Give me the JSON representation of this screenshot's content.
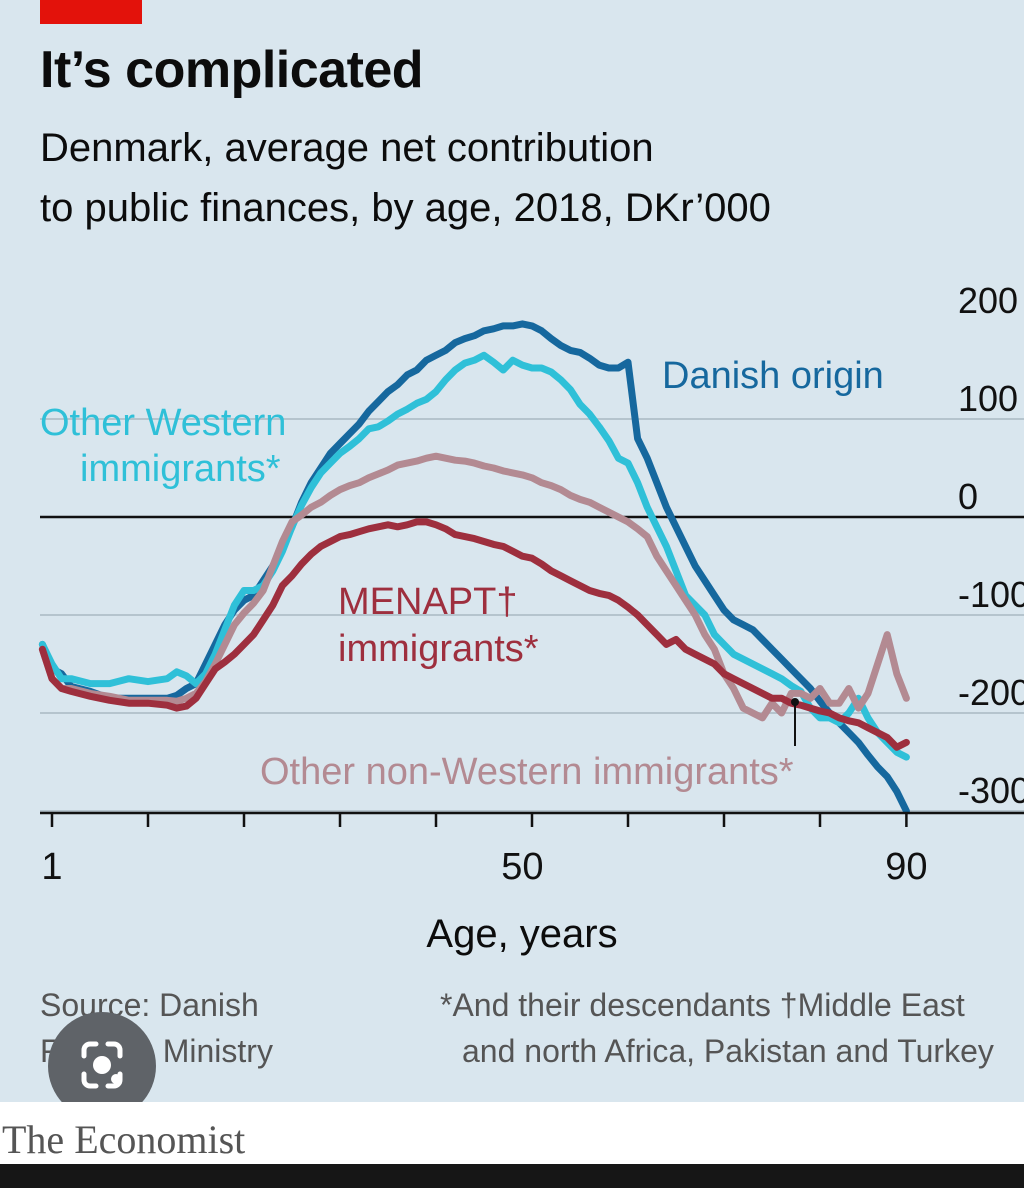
{
  "header": {
    "title": "It’s complicated",
    "subtitle_line1": "Denmark, average net contribution",
    "subtitle_line2_bold": "to public finances,",
    "subtitle_line2_light": " by age, 2018, DKr’000"
  },
  "footer": {
    "source_line1": "Source: Danish",
    "source_line2": "Finance Ministry",
    "footnote_line1": "*And their descendants   †Middle East",
    "footnote_line2": "and north Africa, Pakistan and Turkey",
    "brand": "The Economist"
  },
  "colors": {
    "background": "#d9e6ee",
    "danish": "#16689e",
    "other_western": "#2fc0d8",
    "menapt": "#9e2f3e",
    "other_non_western": "#b38a92",
    "accent_red": "#e3120b"
  },
  "chart_data": {
    "type": "line",
    "title": "It’s complicated",
    "subtitle": "Denmark, average net contribution to public finances, by age, 2018, DKr’000",
    "xlabel": "Age, years",
    "ylabel": "",
    "xlim": [
      0,
      91
    ],
    "ylim": [
      -300,
      200
    ],
    "x_ticks": [
      1,
      50,
      90
    ],
    "y_ticks": [
      200,
      100,
      0,
      -100,
      -200,
      -300
    ],
    "y_tick_labels": [
      "200",
      "100",
      "0",
      "-100",
      "-200",
      "-300"
    ],
    "grid": "horizontal",
    "series": [
      {
        "name": "Danish origin",
        "color": "#16689e",
        "x": [
          0,
          1,
          2,
          3,
          5,
          7,
          9,
          11,
          13,
          14,
          15,
          16,
          17,
          18,
          19,
          20,
          21,
          22,
          23,
          24,
          25,
          26,
          27,
          28,
          29,
          30,
          31,
          32,
          33,
          34,
          35,
          36,
          37,
          38,
          39,
          40,
          41,
          42,
          43,
          44,
          45,
          46,
          47,
          48,
          49,
          50,
          51,
          52,
          53,
          54,
          55,
          56,
          57,
          58,
          59,
          60,
          61,
          62,
          63,
          64,
          65,
          66,
          67,
          68,
          69,
          70,
          71,
          72,
          73,
          74,
          75,
          76,
          77,
          78,
          79,
          80,
          81,
          82,
          83,
          84,
          85,
          86,
          87,
          88,
          89,
          90
        ],
        "values": [
          -130,
          -155,
          -160,
          -173,
          -178,
          -185,
          -185,
          -185,
          -185,
          -182,
          -175,
          -170,
          -150,
          -130,
          -110,
          -95,
          -85,
          -80,
          -65,
          -50,
          -30,
          -10,
          15,
          35,
          50,
          65,
          75,
          85,
          95,
          108,
          118,
          128,
          135,
          145,
          150,
          160,
          165,
          170,
          178,
          182,
          185,
          190,
          192,
          195,
          195,
          197,
          195,
          190,
          182,
          175,
          170,
          168,
          162,
          155,
          152,
          152,
          158,
          80,
          60,
          35,
          10,
          -10,
          -30,
          -50,
          -65,
          -80,
          -95,
          -105,
          -110,
          -115,
          -125,
          -135,
          -145,
          -155,
          -165,
          -175,
          -188,
          -200,
          -210,
          -220,
          -230,
          -243,
          -255,
          -265,
          -280,
          -300
        ]
      },
      {
        "name": "Other Western immigrants*",
        "color": "#2fc0d8",
        "x": [
          0,
          1,
          2,
          3,
          5,
          7,
          9,
          11,
          13,
          14,
          15,
          16,
          17,
          18,
          19,
          20,
          21,
          22,
          23,
          24,
          25,
          26,
          27,
          28,
          29,
          30,
          31,
          32,
          33,
          34,
          35,
          36,
          37,
          38,
          39,
          40,
          41,
          42,
          43,
          44,
          45,
          46,
          47,
          48,
          49,
          50,
          51,
          52,
          53,
          54,
          55,
          56,
          57,
          58,
          59,
          60,
          61,
          62,
          63,
          64,
          65,
          66,
          67,
          68,
          69,
          70,
          71,
          72,
          73,
          74,
          75,
          76,
          77,
          78,
          79,
          80,
          81,
          82,
          83,
          84,
          85,
          86,
          87,
          88,
          89,
          90
        ],
        "values": [
          -130,
          -150,
          -165,
          -165,
          -170,
          -170,
          -165,
          -168,
          -165,
          -158,
          -162,
          -170,
          -160,
          -140,
          -115,
          -90,
          -75,
          -75,
          -70,
          -55,
          -35,
          -10,
          12,
          30,
          45,
          55,
          65,
          72,
          80,
          90,
          92,
          98,
          105,
          110,
          116,
          120,
          128,
          140,
          150,
          157,
          160,
          165,
          158,
          150,
          160,
          155,
          152,
          152,
          148,
          140,
          130,
          115,
          105,
          92,
          78,
          60,
          55,
          35,
          10,
          -10,
          -30,
          -55,
          -80,
          -90,
          -100,
          -120,
          -130,
          -140,
          -145,
          -150,
          -155,
          -160,
          -165,
          -172,
          -178,
          -195,
          -205,
          -205,
          -210,
          -200,
          -185,
          -205,
          -220,
          -230,
          -240,
          -245
        ]
      },
      {
        "name": "Other non-Western immigrants*",
        "color": "#b38a92",
        "x": [
          0,
          1,
          2,
          3,
          5,
          7,
          9,
          11,
          13,
          14,
          15,
          16,
          17,
          18,
          19,
          20,
          21,
          22,
          23,
          24,
          25,
          26,
          27,
          28,
          29,
          30,
          31,
          32,
          33,
          34,
          35,
          36,
          37,
          38,
          39,
          40,
          41,
          42,
          43,
          44,
          45,
          46,
          47,
          48,
          49,
          50,
          51,
          52,
          53,
          54,
          55,
          56,
          57,
          58,
          59,
          60,
          61,
          62,
          63,
          64,
          65,
          66,
          67,
          68,
          69,
          70,
          71,
          72,
          73,
          74,
          75,
          76,
          77,
          78,
          79,
          80,
          81,
          82,
          83,
          84,
          85,
          86,
          87,
          88,
          89,
          90
        ],
        "values": [
          -135,
          -165,
          -175,
          -175,
          -180,
          -183,
          -187,
          -187,
          -187,
          -188,
          -185,
          -180,
          -168,
          -150,
          -130,
          -110,
          -98,
          -88,
          -75,
          -50,
          -25,
          -5,
          2,
          10,
          15,
          22,
          28,
          32,
          35,
          40,
          44,
          48,
          53,
          55,
          57,
          60,
          62,
          60,
          58,
          57,
          55,
          52,
          50,
          47,
          45,
          43,
          40,
          35,
          32,
          28,
          22,
          18,
          15,
          10,
          5,
          0,
          -5,
          -12,
          -20,
          -40,
          -55,
          -70,
          -85,
          -100,
          -120,
          -135,
          -160,
          -175,
          -195,
          -200,
          -205,
          -190,
          -200,
          -180,
          -180,
          -185,
          -175,
          -190,
          -190,
          -175,
          -195,
          -180,
          -150,
          -120,
          -160,
          -185
        ]
      },
      {
        "name": "MENAPT† immigrants*",
        "color": "#9e2f3e",
        "x": [
          0,
          1,
          2,
          3,
          5,
          7,
          9,
          11,
          13,
          14,
          15,
          16,
          17,
          18,
          19,
          20,
          21,
          22,
          23,
          24,
          25,
          26,
          27,
          28,
          29,
          30,
          31,
          32,
          33,
          34,
          35,
          36,
          37,
          38,
          39,
          40,
          41,
          42,
          43,
          44,
          45,
          46,
          47,
          48,
          49,
          50,
          51,
          52,
          53,
          54,
          55,
          56,
          57,
          58,
          59,
          60,
          61,
          62,
          63,
          64,
          65,
          66,
          67,
          68,
          69,
          70,
          71,
          72,
          73,
          74,
          75,
          76,
          77,
          78,
          79,
          80,
          81,
          82,
          83,
          84,
          85,
          86,
          87,
          88,
          89,
          90
        ],
        "values": [
          -135,
          -165,
          -175,
          -178,
          -183,
          -187,
          -190,
          -190,
          -192,
          -195,
          -193,
          -185,
          -170,
          -155,
          -148,
          -140,
          -130,
          -120,
          -105,
          -90,
          -70,
          -60,
          -48,
          -38,
          -30,
          -25,
          -20,
          -18,
          -15,
          -12,
          -10,
          -8,
          -10,
          -8,
          -5,
          -5,
          -8,
          -12,
          -18,
          -20,
          -22,
          -25,
          -28,
          -30,
          -35,
          -40,
          -42,
          -48,
          -55,
          -60,
          -65,
          -70,
          -75,
          -78,
          -80,
          -85,
          -92,
          -100,
          -110,
          -120,
          -130,
          -125,
          -135,
          -140,
          -145,
          -150,
          -160,
          -165,
          -170,
          -175,
          -180,
          -185,
          -185,
          -190,
          -192,
          -195,
          -198,
          -200,
          -205,
          -208,
          -210,
          -215,
          -220,
          -225,
          -235,
          -230
        ]
      }
    ],
    "annotations": [
      {
        "text": "Danish origin",
        "series": "Danish origin"
      },
      {
        "text_line1": "Other Western",
        "text_line2": "immigrants*",
        "series": "Other Western immigrants*"
      },
      {
        "text_line1": "MENAPT†",
        "text_line2": "immigrants*",
        "series": "MENAPT† immigrants*"
      },
      {
        "text": "Other non-Western immigrants*",
        "series": "Other non-Western immigrants*"
      }
    ]
  }
}
